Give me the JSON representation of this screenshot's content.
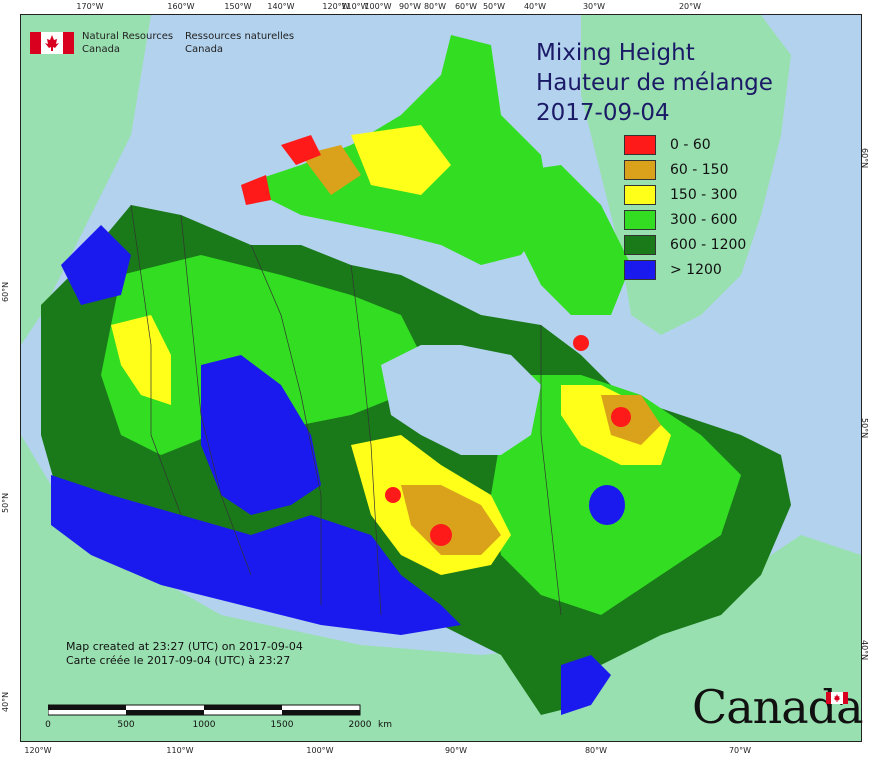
{
  "agency": {
    "name_en_line1": "Natural Resources",
    "name_en_line2": "Canada",
    "name_fr_line1": "Ressources naturelles",
    "name_fr_line2": "Canada"
  },
  "title": {
    "line1": "Mixing Height",
    "line2": "Hauteur de mélange",
    "date": "2017-09-04"
  },
  "legend": {
    "items": [
      {
        "label": "0 - 60",
        "color": "#ff1a1a"
      },
      {
        "label": "60 - 150",
        "color": "#d9a21a"
      },
      {
        "label": "150 - 300",
        "color": "#ffff1a"
      },
      {
        "label": "300 - 600",
        "color": "#33dd22"
      },
      {
        "label": "600 - 1200",
        "color": "#1a7a1a"
      },
      {
        "label": "> 1200",
        "color": "#1a1aee"
      }
    ]
  },
  "graticule": {
    "top": [
      "170°W",
      "160°W",
      "150°W",
      "140°W",
      "120°W",
      "110°W",
      "100°W",
      "90°W",
      "80°W",
      "60°W",
      "50°W",
      "40°W",
      "30°W",
      "20°W"
    ],
    "bottom": [
      "120°W",
      "110°W",
      "100°W",
      "90°W",
      "80°W",
      "70°W"
    ],
    "left": [
      "60°N",
      "50°N",
      "40°N"
    ],
    "right": [
      "60°N",
      "50°N",
      "40°N"
    ]
  },
  "credit": {
    "line_en": "Map created at 23:27 (UTC) on 2017-09-04",
    "line_fr": "Carte créée le 2017-09-04 (UTC) à 23:27"
  },
  "scale": {
    "ticks": [
      "0",
      "500",
      "1000",
      "1500",
      "2000"
    ],
    "unit": "km"
  },
  "wordmark": "Canada",
  "colors": {
    "ocean": "#b3d2ee",
    "neighbour_land": "#99e0b0"
  }
}
